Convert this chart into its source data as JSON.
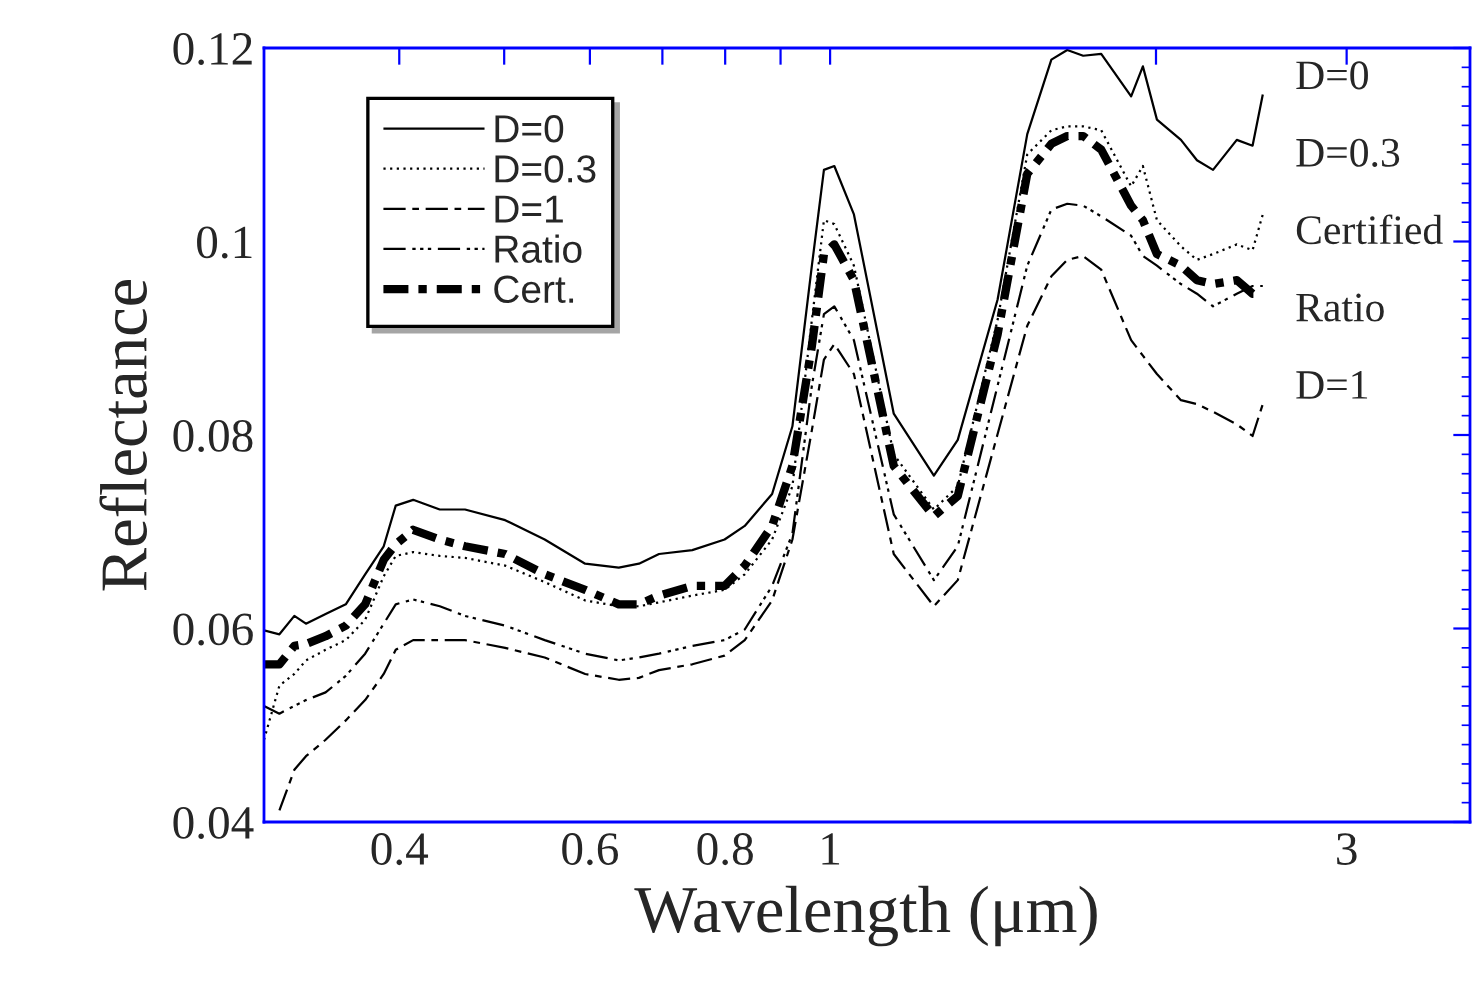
{
  "chart_data": {
    "type": "line",
    "xlabel": "Wavelength (μm)",
    "ylabel": "Reflectance",
    "x": [
      0.3,
      0.31,
      0.32,
      0.328,
      0.342,
      0.357,
      0.372,
      0.387,
      0.397,
      0.412,
      0.436,
      0.46,
      0.501,
      0.545,
      0.594,
      0.638,
      0.666,
      0.695,
      0.746,
      0.799,
      0.834,
      0.884,
      0.923,
      0.962,
      0.987,
      1.009,
      1.052,
      1.145,
      1.247,
      1.312,
      1.428,
      1.521,
      1.601,
      1.656,
      1.713,
      1.78,
      1.897,
      1.945,
      2.004,
      2.109,
      2.182,
      2.258,
      2.375,
      2.456,
      2.51
    ],
    "series": [
      {
        "name": "D=0",
        "color": "#000000",
        "line_style": "solid",
        "values": [
          0.0598,
          0.0594,
          0.0613,
          0.0605,
          0.0615,
          0.0625,
          0.0656,
          0.0685,
          0.0727,
          0.0733,
          0.0723,
          0.0723,
          0.0712,
          0.0692,
          0.0667,
          0.0663,
          0.0667,
          0.0677,
          0.0681,
          0.0692,
          0.0706,
          0.0739,
          0.0809,
          0.0975,
          0.1074,
          0.1078,
          0.1028,
          0.0822,
          0.0758,
          0.0795,
          0.094,
          0.1111,
          0.1188,
          0.1198,
          0.1192,
          0.1194,
          0.115,
          0.1181,
          0.1126,
          0.1105,
          0.1084,
          0.1074,
          0.1105,
          0.1099,
          0.1152
        ]
      },
      {
        "name": "D=0.3",
        "color": "#000000",
        "line_style": "dotted",
        "values": [
          0.0485,
          0.0541,
          0.0553,
          0.0567,
          0.0578,
          0.0588,
          0.0609,
          0.0654,
          0.0675,
          0.0679,
          0.0675,
          0.0673,
          0.0665,
          0.0648,
          0.0629,
          0.0623,
          0.0623,
          0.0627,
          0.0634,
          0.064,
          0.0656,
          0.0692,
          0.0747,
          0.0919,
          0.1022,
          0.1018,
          0.0975,
          0.078,
          0.0723,
          0.0747,
          0.0919,
          0.109,
          0.1115,
          0.1119,
          0.1119,
          0.1115,
          0.1057,
          0.1078,
          0.1022,
          0.0995,
          0.0981,
          0.0987,
          0.0997,
          0.0991,
          0.1028
        ]
      },
      {
        "name": "D=1",
        "color": "#000000",
        "line_style": "dashdot",
        "values": [
          null,
          0.0412,
          0.0454,
          0.0468,
          0.0485,
          0.0505,
          0.0526,
          0.0553,
          0.0578,
          0.0588,
          0.0588,
          0.0588,
          0.058,
          0.057,
          0.0553,
          0.0547,
          0.0549,
          0.0557,
          0.0563,
          0.0572,
          0.0588,
          0.0629,
          0.0692,
          0.0805,
          0.0878,
          0.0894,
          0.0863,
          0.0677,
          0.0623,
          0.065,
          0.0801,
          0.0913,
          0.0964,
          0.0981,
          0.0985,
          0.0971,
          0.0898,
          0.0882,
          0.0863,
          0.0836,
          0.0832,
          0.0824,
          0.0811,
          0.0799,
          0.0832
        ]
      },
      {
        "name": "Ratio",
        "color": "#000000",
        "line_style": "dashdotdot",
        "values": [
          0.052,
          0.0512,
          0.052,
          0.0526,
          0.0534,
          0.0551,
          0.0574,
          0.0605,
          0.0625,
          0.063,
          0.0623,
          0.0613,
          0.0603,
          0.0588,
          0.0574,
          0.0567,
          0.057,
          0.0574,
          0.0582,
          0.0588,
          0.0599,
          0.0644,
          0.0698,
          0.0851,
          0.0925,
          0.0933,
          0.0898,
          0.0718,
          0.065,
          0.0685,
          0.0851,
          0.0975,
          0.1033,
          0.1039,
          0.1037,
          0.1026,
          0.1006,
          0.0985,
          0.0975,
          0.0956,
          0.0946,
          0.0933,
          0.0946,
          0.0954,
          0.0954
        ]
      },
      {
        "name": "Cert.",
        "color": "#000000",
        "line_style": "dashdot_bold",
        "values": [
          0.0563,
          0.0563,
          0.0582,
          0.0584,
          0.0592,
          0.0603,
          0.0625,
          0.0671,
          0.0687,
          0.0702,
          0.0692,
          0.0685,
          0.0677,
          0.0656,
          0.064,
          0.0625,
          0.0625,
          0.0634,
          0.0644,
          0.0644,
          0.0665,
          0.0706,
          0.0768,
          0.0892,
          0.0987,
          0.0997,
          0.096,
          0.0768,
          0.0716,
          0.0737,
          0.0904,
          0.107,
          0.1101,
          0.1109,
          0.1109,
          0.1095,
          0.1037,
          0.1022,
          0.0987,
          0.0975,
          0.096,
          0.0956,
          0.096,
          0.0946,
          0.0946
        ]
      }
    ],
    "log": "x",
    "xlim": [
      0.3,
      3.9
    ],
    "xticks": [
      {
        "value": 0.4,
        "label": "0.4"
      },
      {
        "value": 0.5,
        "label": null
      },
      {
        "value": 0.6,
        "label": "0.6"
      },
      {
        "value": 0.7,
        "label": null
      },
      {
        "value": 0.8,
        "label": "0.8"
      },
      {
        "value": 0.9,
        "label": null
      },
      1,
      {
        "value": 2,
        "label": null
      },
      3
    ],
    "ylim": [
      0.04,
      0.12
    ],
    "yticks": [
      {
        "value": 0.04,
        "label": "0.04"
      },
      {
        "value": 0.06,
        "label": "0.06"
      },
      {
        "value": 0.08,
        "label": "0.08"
      },
      {
        "value": 0.1,
        "label": "0.1"
      },
      {
        "value": 0.12,
        "label": "0.12"
      }
    ],
    "grid": false,
    "legend": "top left",
    "annotations": [
      "D=0",
      "D=0.3",
      "Certified",
      "Ratio",
      "D=1"
    ]
  }
}
